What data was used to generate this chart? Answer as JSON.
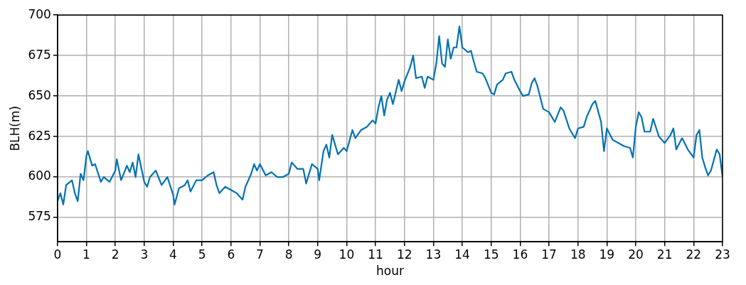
{
  "chart_data": {
    "type": "line",
    "xlabel": "hour",
    "ylabel": "BLH(m)",
    "x": [
      0,
      0.1,
      0.2,
      0.3,
      0.5,
      0.6,
      0.7,
      0.8,
      0.9,
      1.0,
      1.05,
      1.2,
      1.3,
      1.5,
      1.6,
      1.8,
      2.0,
      2.05,
      2.2,
      2.4,
      2.5,
      2.6,
      2.7,
      2.8,
      3.0,
      3.1,
      3.2,
      3.4,
      3.6,
      3.8,
      4.0,
      4.05,
      4.2,
      4.4,
      4.5,
      4.6,
      4.8,
      5.0,
      5.2,
      5.4,
      5.5,
      5.6,
      5.8,
      6.0,
      6.2,
      6.3,
      6.4,
      6.5,
      6.7,
      6.8,
      6.9,
      7.0,
      7.2,
      7.4,
      7.6,
      7.8,
      8.0,
      8.1,
      8.3,
      8.5,
      8.6,
      8.8,
      9.0,
      9.05,
      9.2,
      9.3,
      9.4,
      9.5,
      9.7,
      9.9,
      10.0,
      10.2,
      10.3,
      10.5,
      10.7,
      10.9,
      11.0,
      11.1,
      11.2,
      11.3,
      11.4,
      11.5,
      11.6,
      11.8,
      11.9,
      12.0,
      12.2,
      12.3,
      12.4,
      12.6,
      12.7,
      12.8,
      13.0,
      13.1,
      13.2,
      13.3,
      13.4,
      13.5,
      13.6,
      13.7,
      13.8,
      13.9,
      14.0,
      14.2,
      14.3,
      14.4,
      14.5,
      14.7,
      14.8,
      15.0,
      15.1,
      15.2,
      15.4,
      15.5,
      15.7,
      15.8,
      16.0,
      16.1,
      16.3,
      16.4,
      16.5,
      16.6,
      16.8,
      17.0,
      17.2,
      17.4,
      17.5,
      17.7,
      17.9,
      18.0,
      18.2,
      18.3,
      18.5,
      18.6,
      18.8,
      18.9,
      19.0,
      19.2,
      19.4,
      19.6,
      19.8,
      19.9,
      20.0,
      20.1,
      20.2,
      20.3,
      20.5,
      20.6,
      20.8,
      21.0,
      21.2,
      21.3,
      21.4,
      21.6,
      21.8,
      22.0,
      22.1,
      22.2,
      22.3,
      22.4,
      22.5,
      22.6,
      22.8,
      22.9,
      23.0
    ],
    "series": [
      {
        "color": "#0072b2",
        "values": [
          585,
          590,
          583,
          595,
          598,
          590,
          585,
          602,
          598,
          613,
          616,
          607,
          608,
          597,
          600,
          597,
          604,
          611,
          598,
          607,
          603,
          609,
          600,
          614,
          597,
          594,
          600,
          604,
          595,
          600,
          589,
          583,
          593,
          595,
          598,
          591,
          598,
          598,
          601,
          603,
          595,
          590,
          594,
          592,
          590,
          588,
          586,
          594,
          602,
          608,
          604,
          608,
          601,
          603,
          600,
          600,
          602,
          609,
          605,
          605,
          596,
          608,
          605,
          598,
          616,
          620,
          612,
          626,
          614,
          618,
          616,
          629,
          624,
          629,
          631,
          635,
          633,
          643,
          650,
          638,
          648,
          652,
          645,
          660,
          653,
          659,
          668,
          675,
          661,
          662,
          655,
          662,
          660,
          670,
          687,
          670,
          668,
          685,
          673,
          680,
          680,
          693,
          680,
          677,
          678,
          671,
          665,
          664,
          661,
          652,
          651,
          657,
          660,
          664,
          665,
          660,
          653,
          650,
          651,
          658,
          661,
          656,
          642,
          640,
          634,
          643,
          641,
          630,
          624,
          630,
          631,
          637,
          645,
          647,
          634,
          616,
          630,
          623,
          621,
          619,
          618,
          612,
          631,
          640,
          637,
          628,
          628,
          636,
          625,
          621,
          626,
          630,
          617,
          624,
          617,
          612,
          626,
          629,
          612,
          606,
          601,
          604,
          617,
          614,
          600
        ]
      }
    ],
    "xlim": [
      0,
      23
    ],
    "xticks": [
      0,
      1,
      2,
      3,
      4,
      5,
      6,
      7,
      8,
      9,
      10,
      11,
      12,
      13,
      14,
      15,
      16,
      17,
      18,
      19,
      20,
      21,
      22,
      23
    ],
    "ylim": [
      560,
      700
    ],
    "yticks": [
      575,
      600,
      625,
      650,
      675,
      700
    ],
    "grid": true,
    "marker": "none",
    "line_style": "solid",
    "legend": false
  }
}
